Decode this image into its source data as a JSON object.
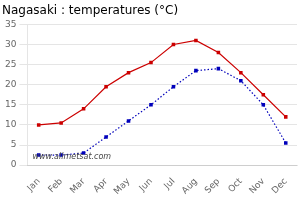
{
  "chart_data": {
    "type": "line",
    "title": "Nagasaki : temperatures (°C)",
    "categories": [
      "Jan",
      "Feb",
      "Mar",
      "Apr",
      "May",
      "Jun",
      "Jul",
      "Aug",
      "Sep",
      "Oct",
      "Nov",
      "Dec"
    ],
    "series": [
      {
        "color": "#cc0000",
        "marker": "square",
        "line_style": "solid",
        "values": [
          10.0,
          10.5,
          14.0,
          19.5,
          23.0,
          25.5,
          30.0,
          31.0,
          28.0,
          23.0,
          17.5,
          12.0
        ]
      },
      {
        "color": "#0000bb",
        "marker": "square",
        "line_style": "dotted",
        "values": [
          2.5,
          2.5,
          3.0,
          7.0,
          11.0,
          15.0,
          19.5,
          23.5,
          24.0,
          21.0,
          15.0,
          5.5
        ]
      }
    ],
    "ylim": [
      0,
      35
    ],
    "yticks": [
      0,
      5,
      10,
      15,
      20,
      25,
      30,
      35
    ],
    "grid": "y",
    "annotations": [
      "www.allmetsat.com"
    ]
  }
}
